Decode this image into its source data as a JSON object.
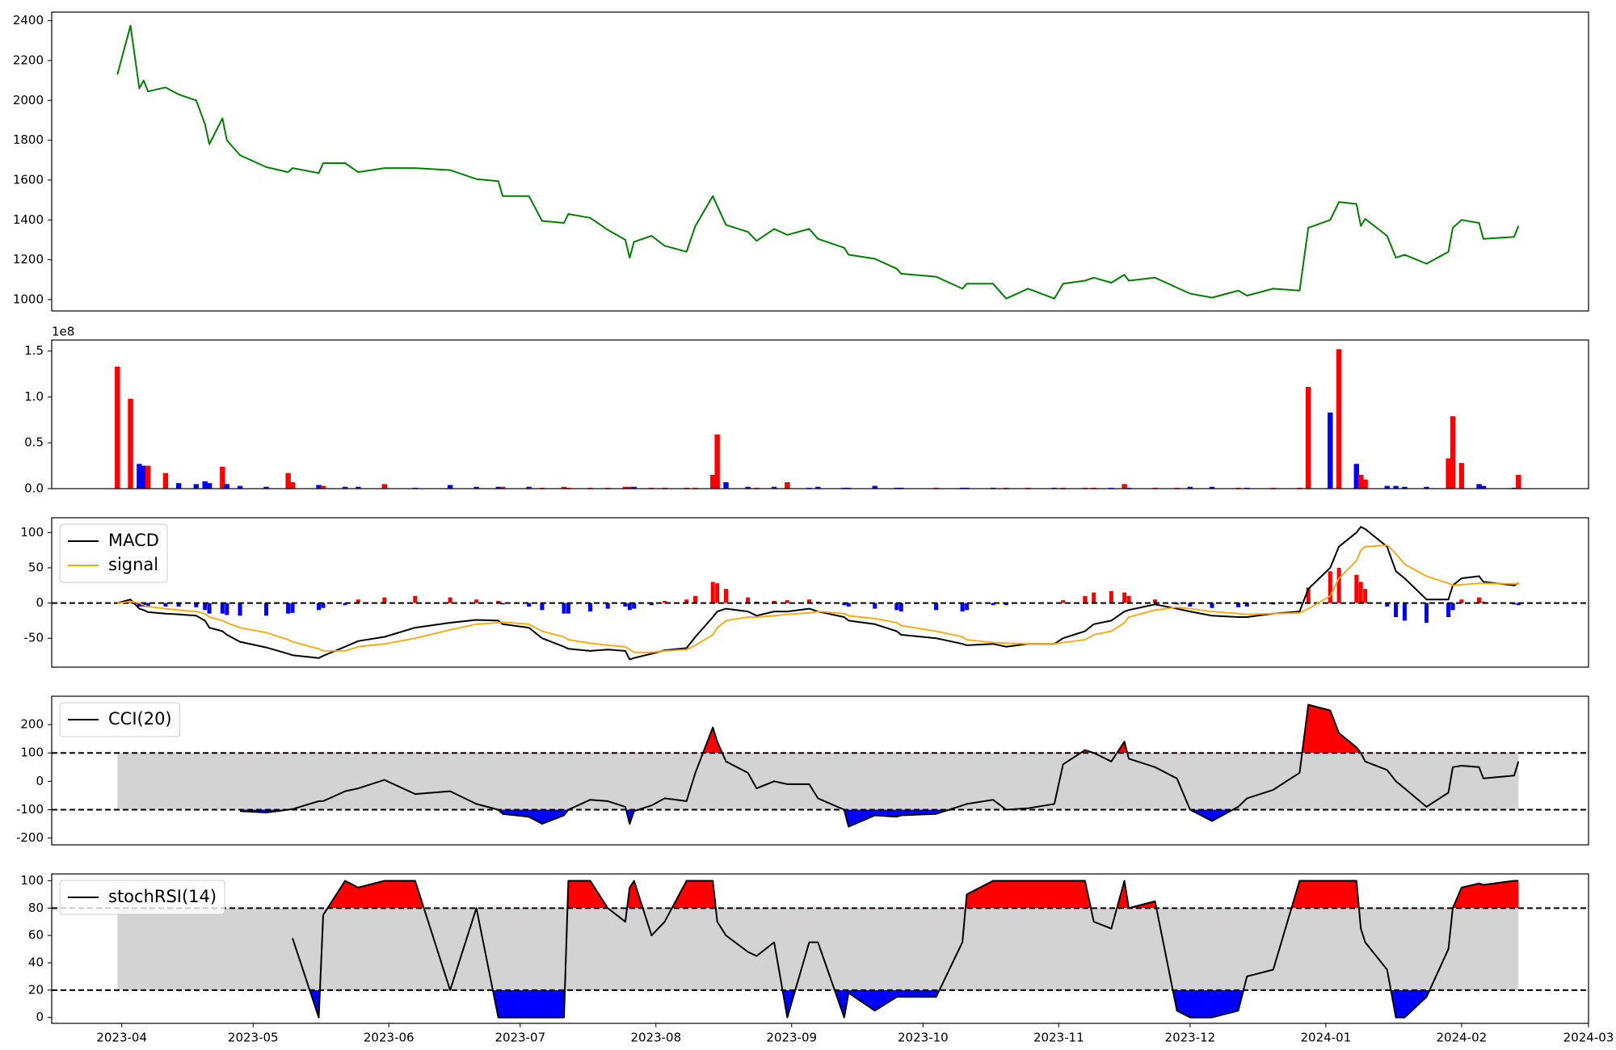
{
  "chart_data": {
    "type": "panels",
    "x": [
      "2023-03-31",
      "2023-04-03",
      "2023-04-05",
      "2023-04-06",
      "2023-04-07",
      "2023-04-11",
      "2023-04-14",
      "2023-04-18",
      "2023-04-20",
      "2023-04-21",
      "2023-04-24",
      "2023-04-25",
      "2023-04-28",
      "2023-05-04",
      "2023-05-09",
      "2023-05-10",
      "2023-05-16",
      "2023-05-17",
      "2023-05-22",
      "2023-05-25",
      "2023-05-31",
      "2023-06-07",
      "2023-06-15",
      "2023-06-21",
      "2023-06-26",
      "2023-06-27",
      "2023-07-03",
      "2023-07-06",
      "2023-07-11",
      "2023-07-12",
      "2023-07-17",
      "2023-07-21",
      "2023-07-25",
      "2023-07-26",
      "2023-07-27",
      "2023-07-31",
      "2023-08-03",
      "2023-08-08",
      "2023-08-10",
      "2023-08-14",
      "2023-08-15",
      "2023-08-17",
      "2023-08-22",
      "2023-08-24",
      "2023-08-28",
      "2023-08-31",
      "2023-09-05",
      "2023-09-07",
      "2023-09-13",
      "2023-09-14",
      "2023-09-20",
      "2023-09-25",
      "2023-09-26",
      "2023-10-04",
      "2023-10-10",
      "2023-10-11",
      "2023-10-17",
      "2023-10-20",
      "2023-10-25",
      "2023-10-31",
      "2023-11-02",
      "2023-11-07",
      "2023-11-09",
      "2023-11-13",
      "2023-11-16",
      "2023-11-17",
      "2023-11-23",
      "2023-11-28",
      "2023-12-01",
      "2023-12-06",
      "2023-12-12",
      "2023-12-14",
      "2023-12-20",
      "2023-12-26",
      "2023-12-28",
      "2024-01-02",
      "2024-01-04",
      "2024-01-08",
      "2024-01-09",
      "2024-01-10",
      "2024-01-15",
      "2024-01-17",
      "2024-01-19",
      "2024-01-24",
      "2024-01-29",
      "2024-01-30",
      "2024-02-01",
      "2024-02-05",
      "2024-02-06",
      "2024-02-13",
      "2024-02-14"
    ],
    "xlim": [
      "2023-03-16",
      "2024-03-01"
    ],
    "xticks": [
      "2023-04",
      "2023-05",
      "2023-06",
      "2023-07",
      "2023-08",
      "2023-09",
      "2023-10",
      "2023-11",
      "2023-12",
      "2024-01",
      "2024-02",
      "2024-03"
    ],
    "panels": [
      {
        "type": "line",
        "ylim": [
          943,
          2443
        ],
        "yticks": [
          1000,
          1200,
          1400,
          1600,
          1800,
          2000,
          2200,
          2400
        ],
        "series": [
          {
            "color": "green",
            "values": [
              2130,
              2375,
              2060,
              2100,
              2045,
              2065,
              2030,
              2000,
              1880,
              1780,
              1910,
              1800,
              1725,
              1665,
              1640,
              1660,
              1635,
              1685,
              1685,
              1640,
              1660,
              1660,
              1650,
              1605,
              1595,
              1520,
              1520,
              1395,
              1385,
              1430,
              1410,
              1350,
              1300,
              1210,
              1290,
              1320,
              1270,
              1240,
              1370,
              1520,
              1470,
              1375,
              1340,
              1295,
              1355,
              1325,
              1355,
              1305,
              1260,
              1225,
              1205,
              1155,
              1130,
              1115,
              1055,
              1080,
              1080,
              1005,
              1055,
              1005,
              1080,
              1095,
              1110,
              1085,
              1125,
              1095,
              1110,
              1060,
              1030,
              1010,
              1045,
              1020,
              1055,
              1045,
              1360,
              1400,
              1490,
              1480,
              1370,
              1405,
              1320,
              1210,
              1225,
              1180,
              1240,
              1360,
              1400,
              1385,
              1305,
              1315,
              1370
            ]
          }
        ]
      },
      {
        "type": "bar",
        "ylim": [
          0,
          1.62
        ],
        "offset_label": "1e8",
        "yticks": [
          {
            "value": 0,
            "label": "0.0"
          },
          0.5,
          {
            "value": 1,
            "label": "1.0"
          },
          1.5
        ],
        "series": [
          {
            "values": [
              1.33,
              0.98,
              0.27,
              0.25,
              0.25,
              0.17,
              0.06,
              0.05,
              0.08,
              0.06,
              0.24,
              0.05,
              0.03,
              0.02,
              0.17,
              0.07,
              0.04,
              0.03,
              0.02,
              0.02,
              0.05,
              0.01,
              0.04,
              0.02,
              0.02,
              0.02,
              0.02,
              0.01,
              0.02,
              0.01,
              0.01,
              0.01,
              0.02,
              0.02,
              0.02,
              0.01,
              0.01,
              0.01,
              0.01,
              0.15,
              0.59,
              0.07,
              0.02,
              0.01,
              0.02,
              0.07,
              0.01,
              0.02,
              0.01,
              0.01,
              0.03,
              0.01,
              0.01,
              0.01,
              0.01,
              0.01,
              0.01,
              0.01,
              0.01,
              0.01,
              0.01,
              0.01,
              0.01,
              0.01,
              0.05,
              0.01,
              0.01,
              0.01,
              0.02,
              0.02,
              0.01,
              0.01,
              0.01,
              0.01,
              1.11,
              0.83,
              1.52,
              0.27,
              0.15,
              0.1,
              0.03,
              0.03,
              0.02,
              0.02,
              0.33,
              0.79,
              0.28,
              0.05,
              0.03,
              0.01,
              0.15
            ],
            "colors": [
              "red",
              "red",
              "blue",
              "blue",
              "red",
              "red",
              "blue",
              "blue",
              "blue",
              "blue",
              "red",
              "blue",
              "blue",
              "blue",
              "red",
              "red",
              "blue",
              "red",
              "blue",
              "blue",
              "red",
              "blue",
              "blue",
              "blue",
              "blue",
              "red",
              "blue",
              "red",
              "red",
              "red",
              "red",
              "red",
              "red",
              "red",
              "blue",
              "red",
              "red",
              "red",
              "red",
              "red",
              "red",
              "blue",
              "blue",
              "red",
              "blue",
              "red",
              "blue",
              "blue",
              "blue",
              "blue",
              "blue",
              "blue",
              "blue",
              "red",
              "blue",
              "blue",
              "blue",
              "red",
              "red",
              "blue",
              "red",
              "red",
              "red",
              "blue",
              "red",
              "blue",
              "red",
              "red",
              "blue",
              "blue",
              "red",
              "blue",
              "red",
              "red",
              "red",
              "blue",
              "red",
              "blue",
              "red",
              "red",
              "blue",
              "blue",
              "blue",
              "blue",
              "red",
              "red",
              "red",
              "blue",
              "blue",
              "blue",
              "red"
            ]
          }
        ]
      },
      {
        "type": "macd",
        "ylim": [
          -91,
          121
        ],
        "yticks": [
          -50,
          0,
          50,
          100
        ],
        "zero_line": true,
        "legend": "upper left",
        "histogram": {
          "up_color": "red",
          "down_color": "blue",
          "values": [
            0,
            2,
            -5,
            -5,
            -6,
            -5,
            -5,
            -6,
            -10,
            -15,
            -15,
            -17,
            -18,
            -18,
            -15,
            -14,
            -10,
            -7,
            -3,
            5,
            8,
            10,
            8,
            5,
            3,
            -2,
            -5,
            -10,
            -15,
            -15,
            -12,
            -8,
            -5,
            -10,
            -8,
            -3,
            3,
            5,
            10,
            30,
            28,
            20,
            8,
            2,
            3,
            4,
            5,
            2,
            -3,
            -5,
            -8,
            -10,
            -12,
            -10,
            -12,
            -10,
            -3,
            -3,
            0,
            0,
            4,
            10,
            15,
            17,
            15,
            10,
            5,
            -2,
            -5,
            -7,
            -6,
            -5,
            -2,
            2,
            22,
            45,
            50,
            40,
            30,
            20,
            -5,
            -20,
            -25,
            -28,
            -20,
            -10,
            5,
            8,
            2,
            -2,
            -3
          ]
        },
        "series": [
          {
            "name": "MACD",
            "color": "black",
            "values": [
              0,
              5,
              -8,
              -10,
              -13,
              -15,
              -16,
              -18,
              -25,
              -35,
              -40,
              -45,
              -55,
              -63,
              -72,
              -74,
              -78,
              -75,
              -62,
              -54,
              -48,
              -35,
              -28,
              -24,
              -25,
              -30,
              -35,
              -50,
              -62,
              -65,
              -68,
              -66,
              -68,
              -80,
              -78,
              -72,
              -67,
              -64,
              -48,
              -20,
              -12,
              -8,
              -12,
              -18,
              -12,
              -12,
              -8,
              -12,
              -20,
              -25,
              -30,
              -40,
              -45,
              -50,
              -58,
              -60,
              -58,
              -62,
              -58,
              -58,
              -50,
              -40,
              -30,
              -25,
              -12,
              -10,
              -2,
              -8,
              -12,
              -18,
              -20,
              -20,
              -15,
              -12,
              20,
              50,
              80,
              100,
              108,
              105,
              80,
              45,
              35,
              5,
              5,
              25,
              35,
              38,
              30,
              25,
              28
            ]
          },
          {
            "name": "signal",
            "color": "orange",
            "values": [
              0,
              2,
              0,
              -3,
              -5,
              -8,
              -10,
              -12,
              -15,
              -20,
              -25,
              -28,
              -35,
              -42,
              -52,
              -55,
              -65,
              -68,
              -68,
              -62,
              -58,
              -50,
              -38,
              -30,
              -28,
              -27,
              -30,
              -40,
              -48,
              -52,
              -57,
              -60,
              -62,
              -66,
              -70,
              -70,
              -68,
              -66,
              -60,
              -45,
              -35,
              -25,
              -20,
              -20,
              -18,
              -16,
              -14,
              -12,
              -15,
              -18,
              -22,
              -28,
              -32,
              -40,
              -48,
              -52,
              -56,
              -57,
              -58,
              -58,
              -56,
              -52,
              -45,
              -40,
              -28,
              -20,
              -10,
              -6,
              -8,
              -12,
              -15,
              -16,
              -15,
              -14,
              -8,
              10,
              35,
              60,
              75,
              80,
              82,
              70,
              55,
              38,
              28,
              25,
              26,
              28,
              28,
              27,
              27
            ]
          }
        ]
      },
      {
        "type": "oscillator",
        "ylim": [
          -224,
          300
        ],
        "yticks": [
          -200,
          -100,
          0,
          100,
          200
        ],
        "bands": [
          -100,
          100
        ],
        "band_color": "lightgray",
        "above_color": "red",
        "below_color": "blue",
        "legend": "upper left",
        "series": [
          {
            "name": "CCI(20)",
            "color": "black",
            "values": [
              null,
              null,
              null,
              null,
              null,
              null,
              null,
              null,
              null,
              null,
              null,
              null,
              -105,
              -110,
              -100,
              -98,
              -70,
              -70,
              -35,
              -25,
              5,
              -45,
              -35,
              -80,
              -100,
              -115,
              -125,
              -150,
              -120,
              -100,
              -65,
              -70,
              -90,
              -150,
              -105,
              -85,
              -60,
              -70,
              30,
              190,
              140,
              70,
              30,
              -25,
              0,
              -10,
              -10,
              -60,
              -100,
              -160,
              -120,
              -125,
              -120,
              -115,
              -85,
              -80,
              -65,
              -100,
              -95,
              -80,
              60,
              110,
              100,
              70,
              140,
              80,
              50,
              10,
              -100,
              -140,
              -90,
              -60,
              -30,
              30,
              270,
              250,
              170,
              120,
              100,
              70,
              40,
              0,
              -25,
              -90,
              -40,
              50,
              55,
              50,
              10,
              20,
              70
            ]
          }
        ]
      },
      {
        "type": "oscillator",
        "ylim": [
          -4.3,
          105
        ],
        "yticks": [
          0,
          20,
          40,
          60,
          80,
          100
        ],
        "bands": [
          20,
          80
        ],
        "band_color": "lightgray",
        "above_color": "red",
        "below_color": "blue",
        "legend": "upper left",
        "series": [
          {
            "name": "stochRSI(14)",
            "color": "black",
            "values": [
              null,
              null,
              null,
              null,
              null,
              null,
              null,
              null,
              null,
              null,
              null,
              null,
              null,
              null,
              null,
              58,
              0,
              75,
              100,
              95,
              100,
              100,
              20,
              80,
              0,
              0,
              0,
              0,
              0,
              100,
              100,
              80,
              70,
              95,
              100,
              60,
              70,
              100,
              100,
              100,
              70,
              60,
              48,
              45,
              55,
              0,
              55,
              55,
              0,
              18,
              5,
              15,
              15,
              15,
              55,
              90,
              100,
              100,
              100,
              100,
              100,
              100,
              70,
              65,
              100,
              80,
              85,
              5,
              0,
              0,
              5,
              30,
              35,
              100,
              100,
              100,
              100,
              100,
              65,
              55,
              35,
              0,
              0,
              15,
              50,
              80,
              95,
              98,
              97,
              100,
              100
            ]
          }
        ]
      }
    ]
  }
}
